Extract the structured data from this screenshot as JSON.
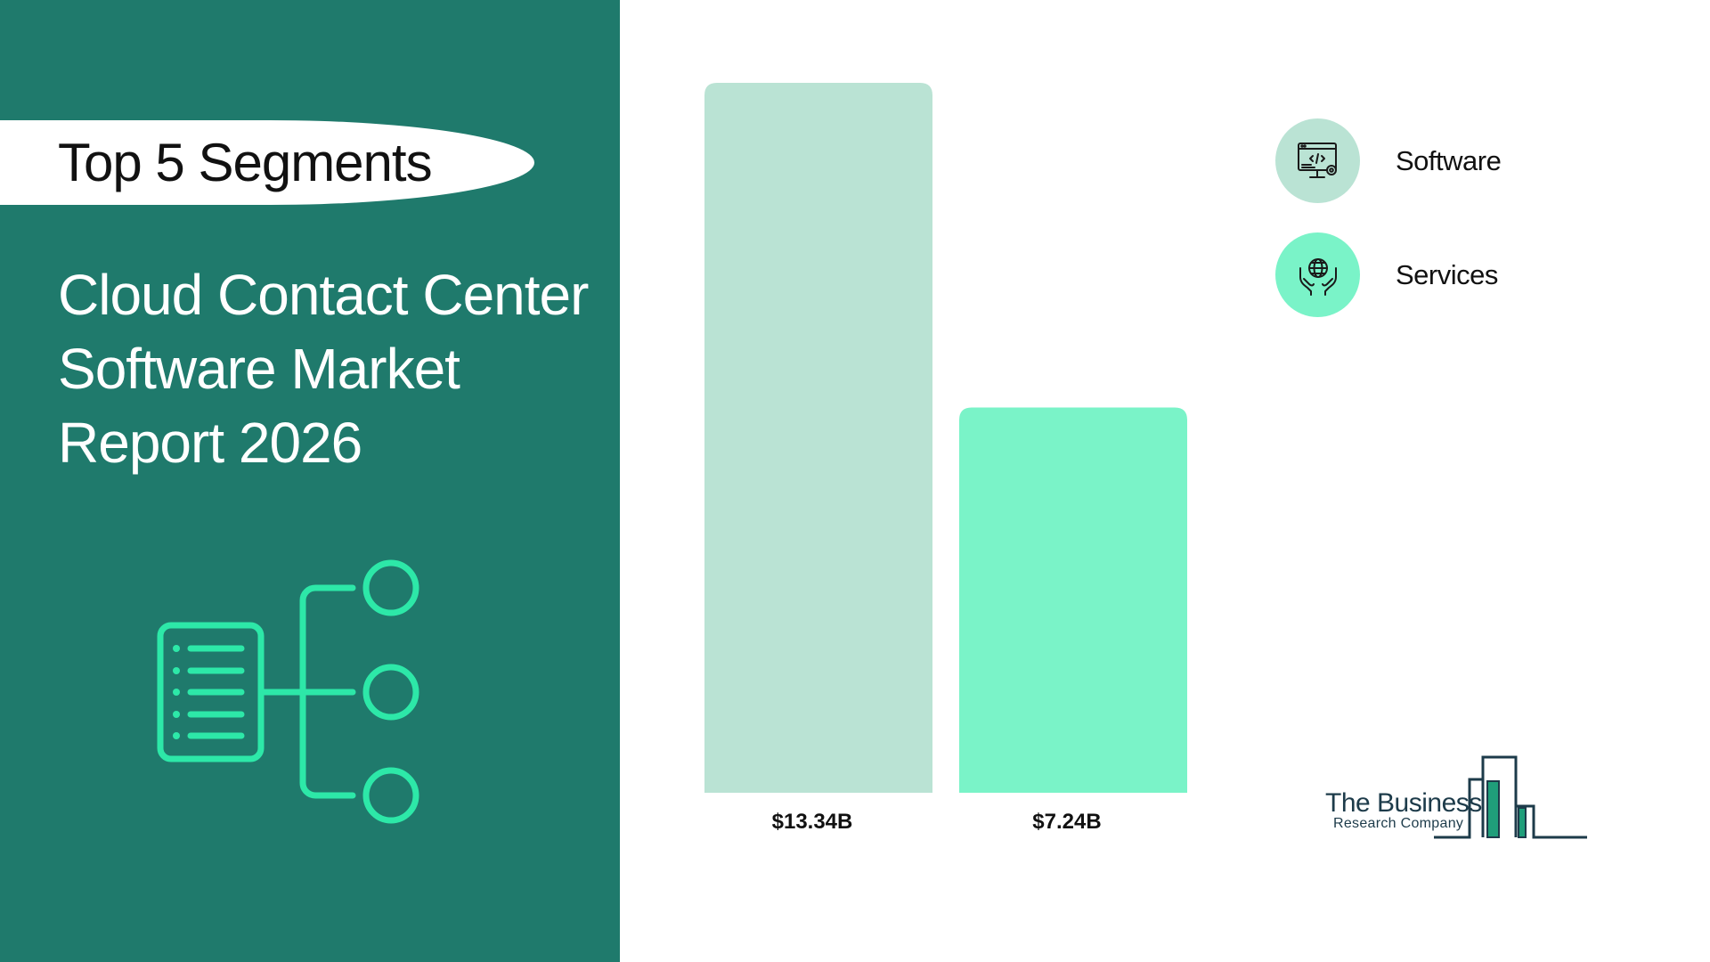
{
  "header": {
    "segments_title": "Top 5 Segments",
    "report_title_lines": [
      "Cloud Contact Center",
      "Software Market",
      "Report 2026"
    ]
  },
  "colors": {
    "panel": "#1f7a6c",
    "accent": "#2de8a8",
    "software_bar": "#bae3d4",
    "services_bar": "#7af3c8"
  },
  "legend": {
    "items": [
      {
        "label": "Software",
        "icon": "software-code-monitor-icon",
        "color": "#bae3d4"
      },
      {
        "label": "Services",
        "icon": "globe-hands-icon",
        "color": "#7af3c8"
      }
    ]
  },
  "chart_data": {
    "type": "bar",
    "categories": [
      "Software",
      "Services"
    ],
    "values": [
      13.34,
      7.24
    ],
    "value_labels": [
      "$13.34B",
      "$7.24B"
    ],
    "unit": "USD billions",
    "colors": [
      "#bae3d4",
      "#7af3c8"
    ],
    "grid": false,
    "legend_position": "top-right"
  },
  "logo": {
    "name": "The Business",
    "sub": "Research Company"
  }
}
